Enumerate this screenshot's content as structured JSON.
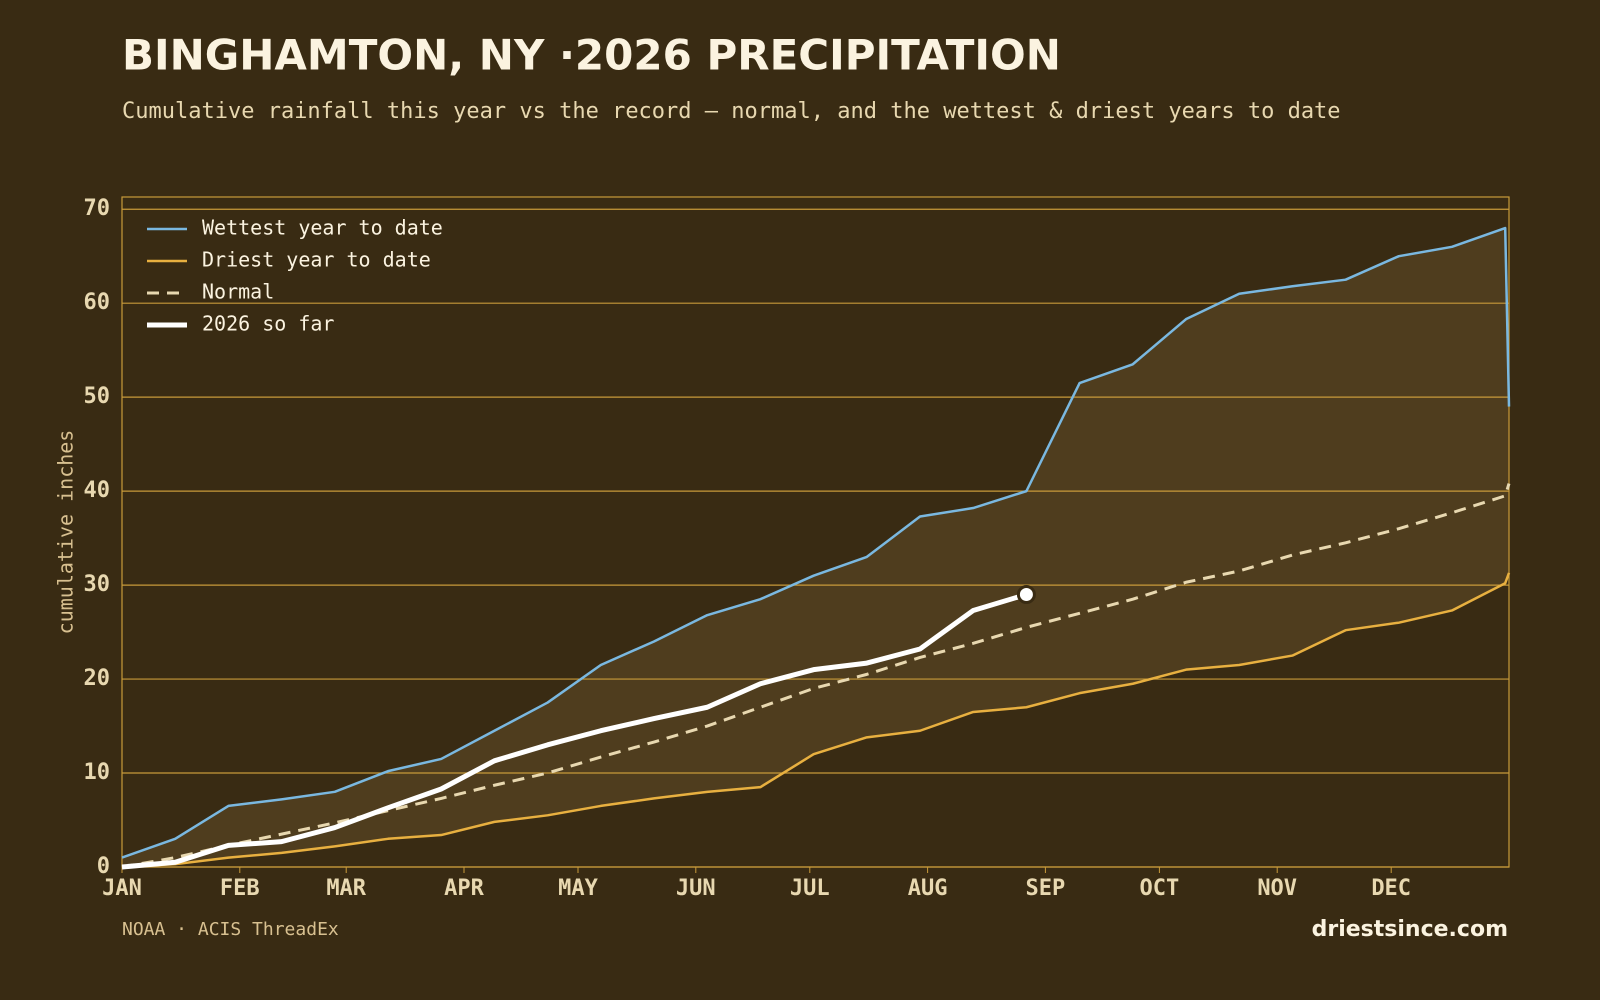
{
  "chart_data": {
    "type": "line",
    "title": "BINGHAMTON, NY ·2026 PRECIPITATION",
    "subtitle": "Cumulative rainfall this year vs the record — normal, and the wettest & driest years to date",
    "y_label": "cumulative inches",
    "source": "NOAA · ACIS ThreadEx",
    "brand": "driestsince.com",
    "x": [
      0,
      14,
      28,
      42,
      56,
      70,
      84,
      98,
      112,
      126,
      140,
      154,
      168,
      182,
      196,
      210,
      224,
      238,
      252,
      266,
      280,
      294,
      308,
      322,
      336,
      350,
      364,
      365
    ],
    "xlim": [
      0,
      365
    ],
    "xticks": [
      {
        "value": 0,
        "label": "JAN"
      },
      {
        "value": 31,
        "label": "FEB"
      },
      {
        "value": 59,
        "label": "MAR"
      },
      {
        "value": 90,
        "label": "APR"
      },
      {
        "value": 120,
        "label": "MAY"
      },
      {
        "value": 151,
        "label": "JUN"
      },
      {
        "value": 181,
        "label": "JUL"
      },
      {
        "value": 212,
        "label": "AUG"
      },
      {
        "value": 243,
        "label": "SEP"
      },
      {
        "value": 273,
        "label": "OCT"
      },
      {
        "value": 304,
        "label": "NOV"
      },
      {
        "value": 334,
        "label": "DEC"
      }
    ],
    "ylim": [
      0,
      71.3
    ],
    "yticks": [
      0,
      10,
      20,
      30,
      40,
      50,
      60,
      70
    ],
    "grid": true,
    "legend": "top-left",
    "band_color": "#4f3d1e",
    "series": [
      {
        "name": "Wettest year to date",
        "color": "#7ab8e0",
        "width": 2.5,
        "style": "solid",
        "values": [
          1,
          3,
          6.5,
          7.2,
          8,
          10.2,
          11.5,
          14.5,
          17.5,
          21.5,
          24,
          26.8,
          28.5,
          31,
          33,
          37.3,
          38.2,
          40,
          51.5,
          53.5,
          58.3,
          61,
          61.8,
          62.5,
          65,
          66,
          68,
          49
        ]
      },
      {
        "name": "Driest year to date",
        "color": "#e8b040",
        "width": 2.5,
        "style": "solid",
        "values": [
          0,
          0.3,
          1,
          1.5,
          2.2,
          3,
          3.4,
          4.8,
          5.5,
          6.5,
          7.3,
          8,
          8.5,
          12,
          13.8,
          14.5,
          16.5,
          17,
          18.5,
          19.5,
          21,
          21.5,
          22.5,
          25.2,
          26,
          27.3,
          30.2,
          31.3
        ]
      },
      {
        "name": "Normal",
        "color": "#e8d8b0",
        "width": 3,
        "style": "dashed",
        "values": [
          0,
          1,
          2.3,
          3.5,
          4.7,
          6,
          7.3,
          8.7,
          10,
          11.7,
          13.3,
          15,
          17,
          19,
          20.5,
          22.3,
          23.8,
          25.5,
          27,
          28.5,
          30.3,
          31.5,
          33.2,
          34.5,
          36,
          37.7,
          39.5,
          40.8
        ]
      },
      {
        "name": "2026 so far",
        "color": "#ffffff",
        "width": 5,
        "style": "solid",
        "values": [
          0,
          0.5,
          2.3,
          2.7,
          4.2,
          6.3,
          8.3,
          11.3,
          13,
          14.5,
          15.8,
          17,
          19.5,
          21,
          21.7,
          23.2,
          27.3,
          29,
          null,
          null,
          null,
          null,
          null,
          null,
          null,
          null,
          null,
          null
        ]
      }
    ]
  }
}
